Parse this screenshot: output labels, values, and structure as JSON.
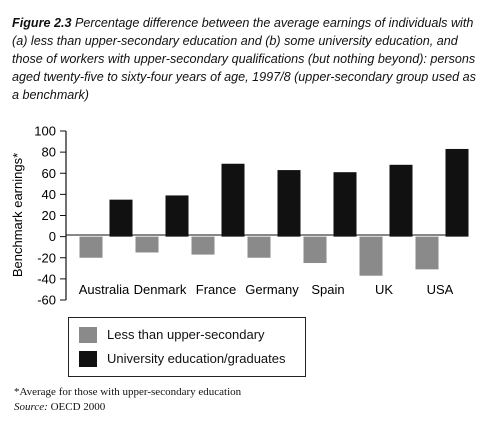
{
  "figure": {
    "label": "Figure 2.3",
    "caption": "Percentage difference between the average earnings of individuals with (a) less than upper-secondary education and (b) some university education, and those of workers with upper-secondary qualifications (but nothing beyond): persons aged twenty-five to sixty-four years of age, 1997/8 (upper-secondary group used as a benchmark)"
  },
  "chart_data": {
    "type": "bar",
    "categories": [
      "Australia",
      "Denmark",
      "France",
      "Germany",
      "Spain",
      "UK",
      "USA"
    ],
    "series": [
      {
        "name": "Less than upper-secondary",
        "values": [
          -20,
          -15,
          -17,
          -20,
          -25,
          -37,
          -31
        ],
        "color": "#8a8a8a"
      },
      {
        "name": "University education/graduates",
        "values": [
          35,
          39,
          69,
          63,
          61,
          68,
          83
        ],
        "color": "#111111"
      }
    ],
    "ylabel": "Benchmark earnings*",
    "ylim": [
      -60,
      100
    ],
    "yticks": [
      100,
      80,
      60,
      40,
      20,
      0,
      -20,
      -40,
      -60
    ],
    "grid": false,
    "legend": "bottom-left"
  },
  "footnote": "*Average for those with upper-secondary education",
  "source": {
    "label": "Source:",
    "text": "OECD 2000"
  }
}
